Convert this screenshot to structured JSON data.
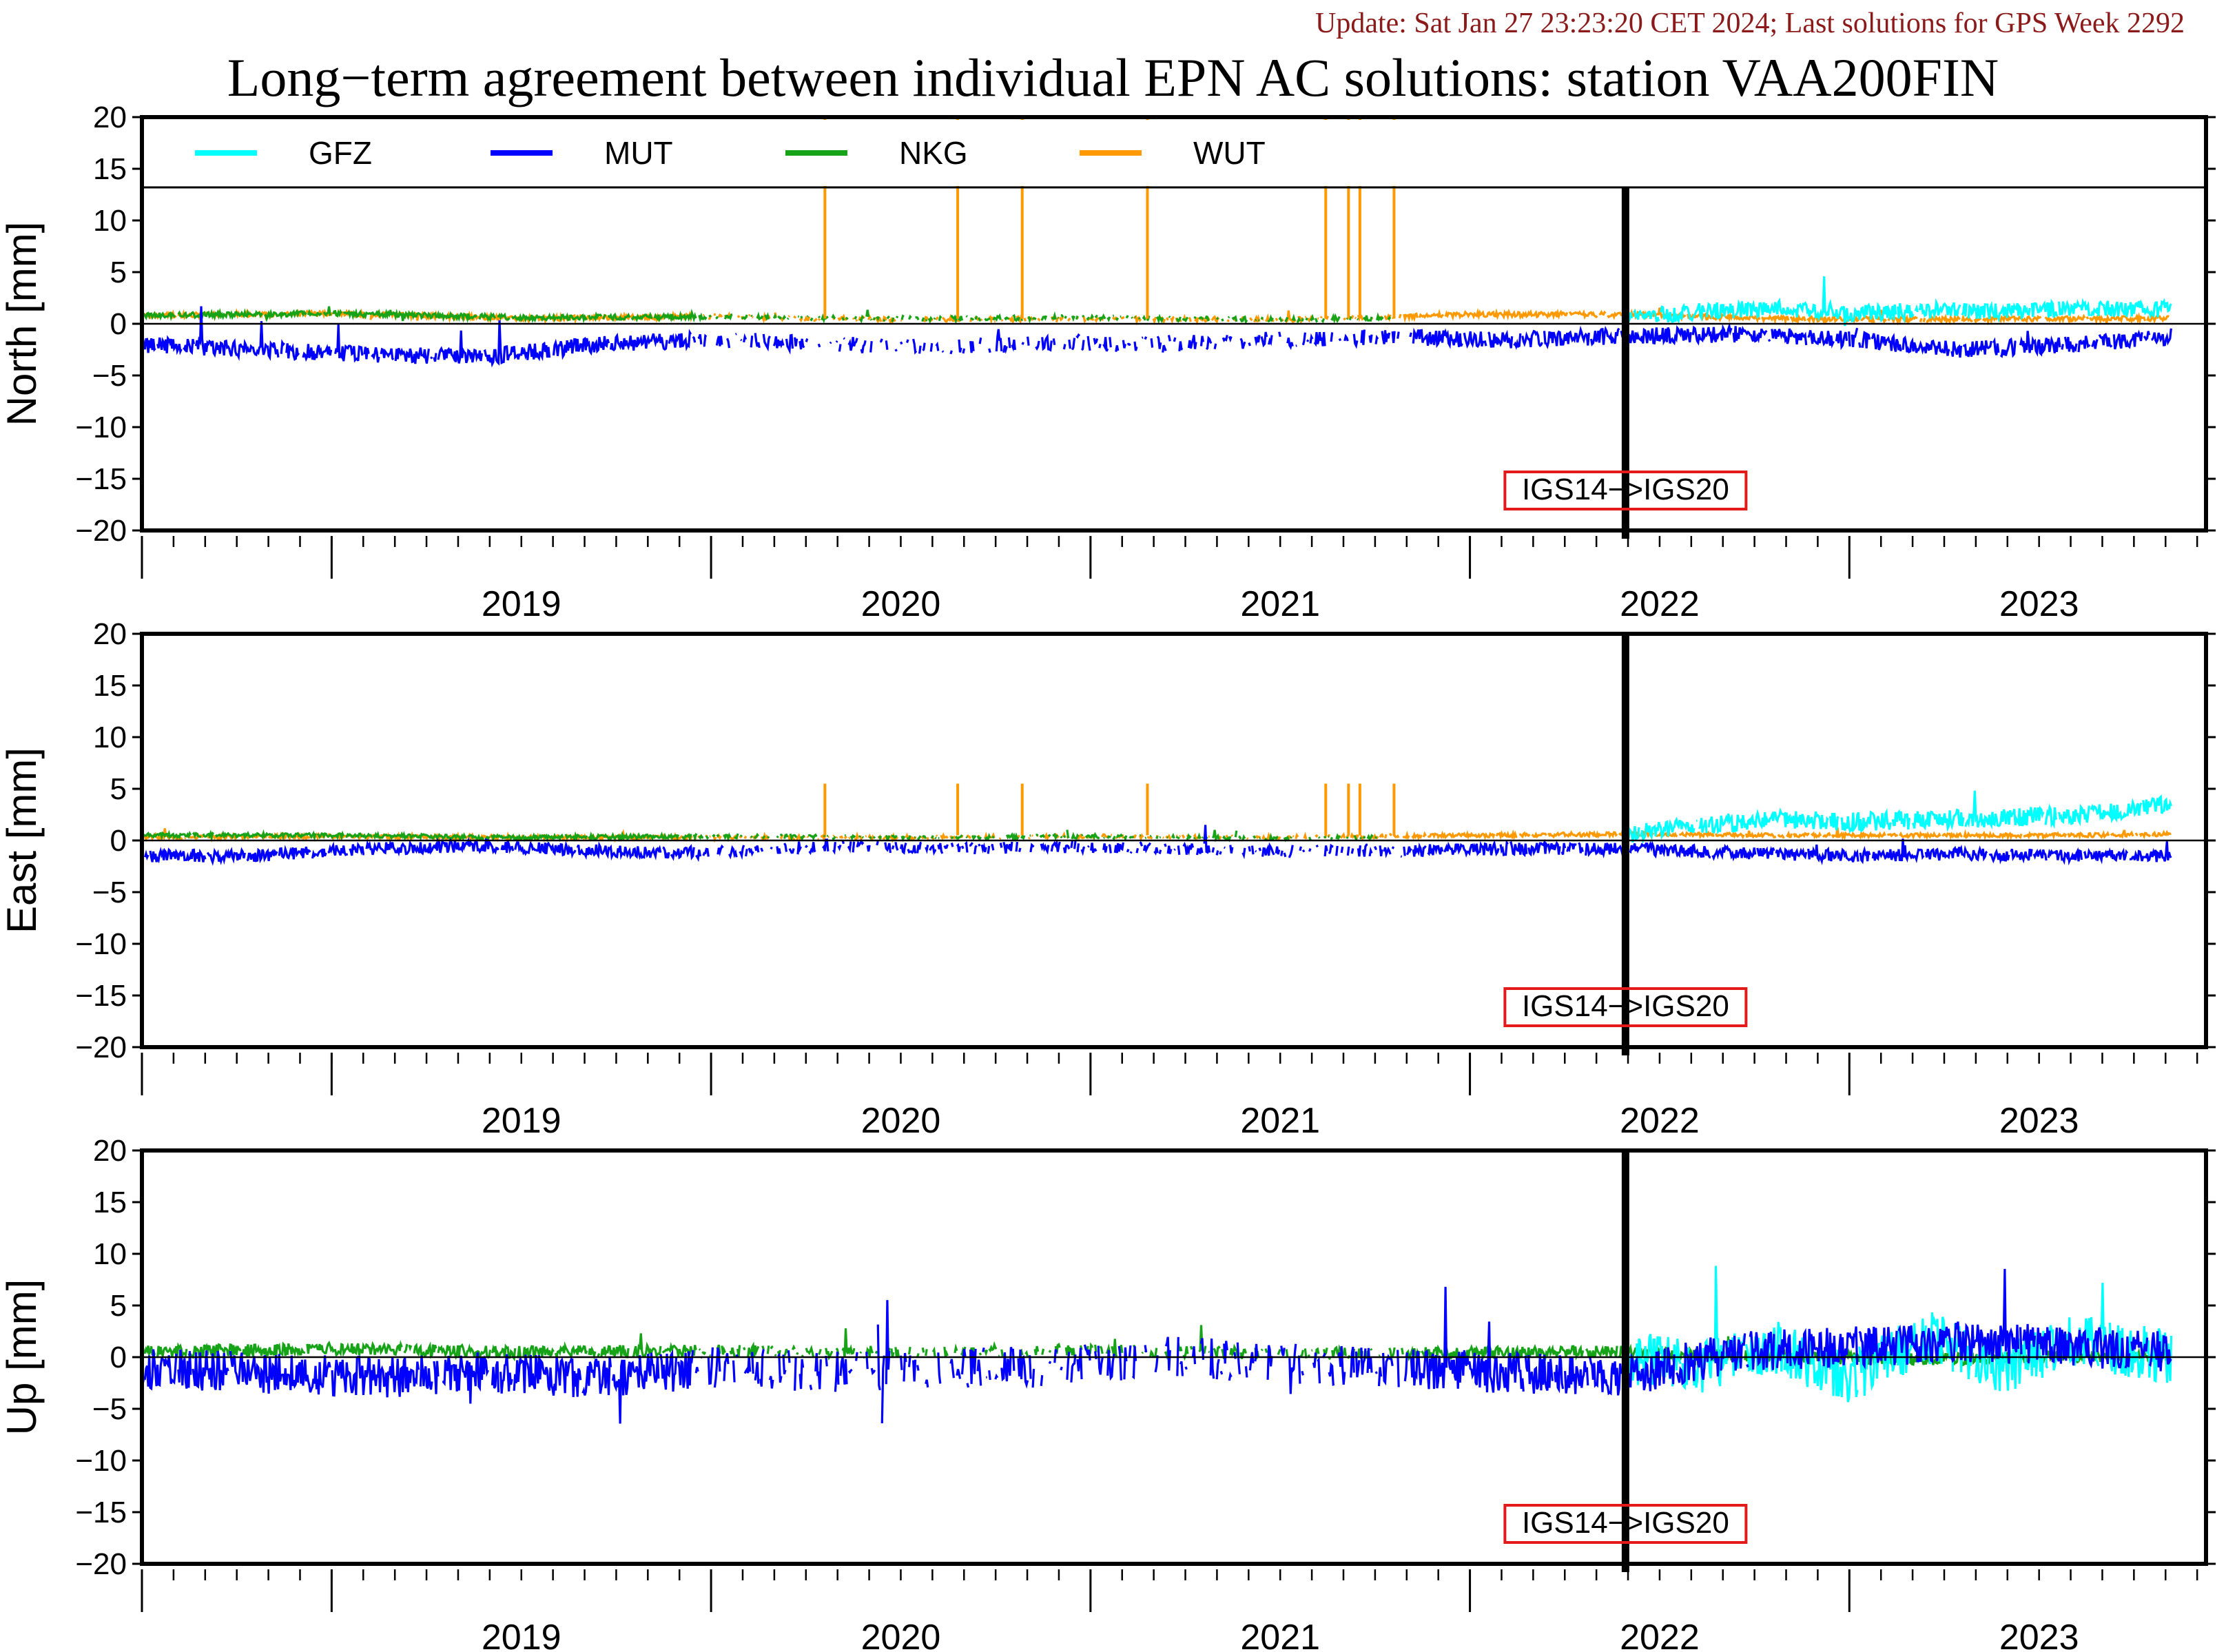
{
  "header": {
    "update": "Update: Sat Jan 27 23:23:20 CET 2024; Last solutions for GPS Week 2292",
    "title": "Long−term agreement between individual EPN AC solutions: station VAA200FIN"
  },
  "legend": [
    {
      "name": "GFZ",
      "color": "#00ffff"
    },
    {
      "name": "MUT",
      "color": "#0000ff"
    },
    {
      "name": "NKG",
      "color": "#17a317"
    },
    {
      "name": "WUT",
      "color": "#ff9900"
    }
  ],
  "marker_label": "IGS14−>IGS20",
  "chart_data": [
    {
      "type": "line",
      "panel": "North",
      "ylabel": "North [mm]",
      "ylim": [
        -20,
        20
      ],
      "yticks": [
        "20",
        "15",
        "10",
        "5",
        "0",
        "−5",
        "−10",
        "−15",
        "−20"
      ],
      "xlim": [
        2018.5,
        2023.94
      ],
      "x_tick_labels": [
        "2019",
        "2020",
        "2021",
        "2022",
        "2023"
      ],
      "frame_change_epoch": 2022.41,
      "series": [
        {
          "name": "GFZ",
          "x": [
            2022.41,
            2022.6,
            2022.8,
            2023.0,
            2023.2,
            2023.4,
            2023.6,
            2023.85
          ],
          "values": [
            0.5,
            1.2,
            1.5,
            1.0,
            1.3,
            1.2,
            1.5,
            1.4
          ]
        },
        {
          "name": "MUT",
          "x": [
            2018.5,
            2018.8,
            2019.1,
            2019.4,
            2019.7,
            2020.0,
            2020.3,
            2020.6,
            2020.9,
            2021.2,
            2021.5,
            2021.8,
            2022.1,
            2022.4,
            2022.7,
            2023.0,
            2023.3,
            2023.6,
            2023.85
          ],
          "values": [
            -2.0,
            -2.5,
            -3.0,
            -3.2,
            -2.0,
            -1.5,
            -2.0,
            -2.3,
            -1.8,
            -2.0,
            -1.5,
            -1.3,
            -1.6,
            -1.2,
            -1.0,
            -1.5,
            -2.5,
            -2.0,
            -1.2
          ]
        },
        {
          "name": "NKG",
          "x": [
            2018.5,
            2019.0,
            2019.5,
            2020.0,
            2020.5,
            2021.0,
            2021.5,
            2021.8
          ],
          "values": [
            0.8,
            1.0,
            0.6,
            0.7,
            0.5,
            0.6,
            0.4,
            0.6
          ]
        },
        {
          "name": "WUT",
          "x": [
            2018.5,
            2019.0,
            2019.5,
            2020.0,
            2020.5,
            2021.0,
            2021.5,
            2022.0,
            2022.41,
            2022.8,
            2023.2,
            2023.6,
            2023.85
          ],
          "values": [
            0.8,
            1.0,
            0.5,
            0.7,
            0.4,
            0.5,
            0.4,
            0.9,
            0.9,
            0.5,
            0.4,
            0.5,
            0.5
          ]
        }
      ]
    },
    {
      "type": "line",
      "panel": "East",
      "ylabel": "East [mm]",
      "ylim": [
        -20,
        20
      ],
      "yticks": [
        "20",
        "15",
        "10",
        "5",
        "0",
        "−5",
        "−10",
        "−15",
        "−20"
      ],
      "xlim": [
        2018.5,
        2023.94
      ],
      "x_tick_labels": [
        "2019",
        "2020",
        "2021",
        "2022",
        "2023"
      ],
      "frame_change_epoch": 2022.41,
      "series": [
        {
          "name": "GFZ",
          "x": [
            2022.41,
            2022.6,
            2022.8,
            2023.0,
            2023.2,
            2023.4,
            2023.6,
            2023.85
          ],
          "values": [
            0.5,
            1.5,
            2.0,
            1.8,
            2.0,
            2.2,
            2.5,
            3.5
          ]
        },
        {
          "name": "MUT",
          "x": [
            2018.5,
            2018.8,
            2019.1,
            2019.4,
            2019.7,
            2020.0,
            2020.3,
            2020.6,
            2020.9,
            2021.2,
            2021.5,
            2021.8,
            2022.1,
            2022.4,
            2022.7,
            2023.0,
            2023.3,
            2023.6,
            2023.85
          ],
          "values": [
            -1.5,
            -1.5,
            -0.8,
            -0.5,
            -1.0,
            -1.2,
            -0.5,
            -0.8,
            -0.6,
            -0.8,
            -1.0,
            -1.0,
            -0.8,
            -0.8,
            -1.2,
            -1.5,
            -1.3,
            -1.5,
            -1.5
          ]
        },
        {
          "name": "NKG",
          "x": [
            2018.5,
            2019.0,
            2019.5,
            2020.0,
            2020.5,
            2021.0,
            2021.5,
            2021.8
          ],
          "values": [
            0.5,
            0.5,
            0.3,
            0.4,
            0.3,
            0.4,
            0.2,
            0.3
          ]
        },
        {
          "name": "WUT",
          "x": [
            2018.5,
            2019.0,
            2019.5,
            2020.0,
            2020.5,
            2021.0,
            2021.5,
            2022.0,
            2022.41,
            2022.8,
            2023.2,
            2023.6,
            2023.85
          ],
          "values": [
            0.3,
            0.4,
            0.3,
            0.3,
            0.3,
            0.4,
            0.3,
            0.5,
            0.6,
            0.5,
            0.5,
            0.5,
            0.6
          ]
        }
      ]
    },
    {
      "type": "line",
      "panel": "Up",
      "ylabel": "Up [mm]",
      "ylim": [
        -20,
        20
      ],
      "yticks": [
        "20",
        "15",
        "10",
        "5",
        "0",
        "−5",
        "−10",
        "−15",
        "−20"
      ],
      "xlim": [
        2018.5,
        2023.94
      ],
      "x_tick_labels": [
        "2019",
        "2020",
        "2021",
        "2022",
        "2023"
      ],
      "frame_change_epoch": 2022.41,
      "series": [
        {
          "name": "GFZ",
          "x": [
            2022.41,
            2022.6,
            2022.8,
            2023.0,
            2023.2,
            2023.4,
            2023.6,
            2023.85
          ],
          "values": [
            0.0,
            -1.0,
            1.0,
            -2.0,
            2.0,
            -1.0,
            1.5,
            0.0
          ]
        },
        {
          "name": "MUT",
          "x": [
            2018.5,
            2018.8,
            2019.1,
            2019.4,
            2019.7,
            2020.0,
            2020.3,
            2020.6,
            2020.9,
            2021.2,
            2021.5,
            2021.8,
            2022.1,
            2022.4,
            2022.7,
            2023.0,
            2023.3,
            2023.6,
            2023.85
          ],
          "values": [
            -1.0,
            -1.5,
            -2.0,
            -1.5,
            -2.0,
            -1.0,
            -1.5,
            -1.0,
            -1.0,
            0.0,
            -0.5,
            -1.0,
            -1.5,
            -2.0,
            0.5,
            1.0,
            1.5,
            1.0,
            0.5
          ]
        },
        {
          "name": "NKG",
          "x": [
            2018.5,
            2019.0,
            2019.5,
            2020.0,
            2020.5,
            2021.0,
            2021.5,
            2022.0,
            2022.41,
            2022.8,
            2023.2,
            2023.6,
            2023.85
          ],
          "values": [
            0.5,
            0.8,
            0.5,
            0.6,
            0.5,
            0.7,
            0.3,
            0.4,
            0.5,
            0.0,
            -0.2,
            0.0,
            0.2
          ]
        }
      ]
    }
  ]
}
